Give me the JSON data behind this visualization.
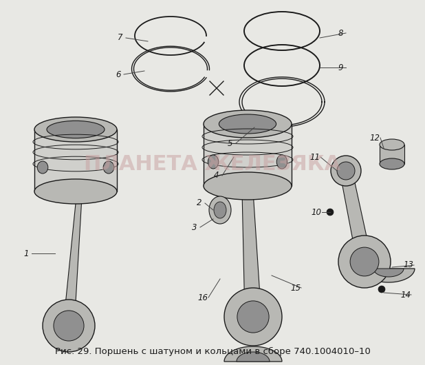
{
  "bg_color": "#e8e8e4",
  "line_color": "#1a1a1a",
  "fill_light": "#d0d0cc",
  "fill_mid": "#b8b8b4",
  "fill_dark": "#909090",
  "caption": "Рис. 29. Поршень с шатуном и кольцами в сборе 740.1004010–10",
  "caption_fontsize": 9.5,
  "watermark": "ПЛАНЕТА ЖЕЛЕЗЯКА",
  "watermark_color": "#c8a0a0",
  "watermark_alpha": 0.5,
  "watermark_fontsize": 22
}
